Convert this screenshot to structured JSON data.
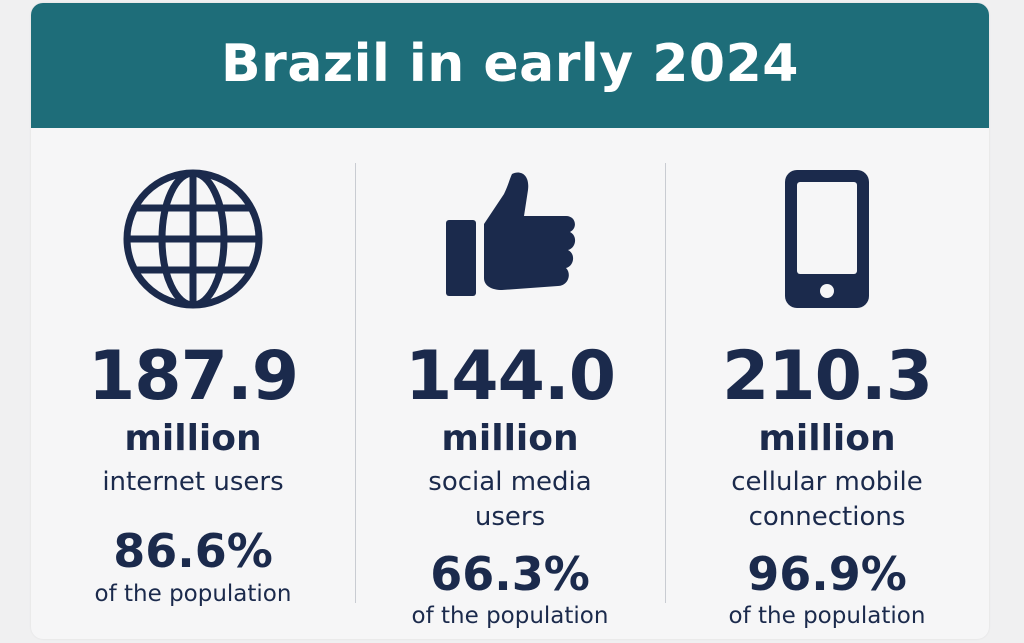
{
  "title": "Brazil in early 2024",
  "colors": {
    "header_bg": "#1e6d79",
    "text": "#1b2a4c",
    "card_bg": "#f6f6f7"
  },
  "stats": [
    {
      "icon": "globe-icon",
      "value": "187.9",
      "unit": "million",
      "label": "internet users",
      "percent": "86.6%",
      "percent_label": "of the population"
    },
    {
      "icon": "thumbs-up-icon",
      "value": "144.0",
      "unit": "million",
      "label": "social media users",
      "percent": "66.3%",
      "percent_label": "of the population"
    },
    {
      "icon": "mobile-phone-icon",
      "value": "210.3",
      "unit": "million",
      "label": "cellular mobile connections",
      "percent": "96.9%",
      "percent_label": "of the population"
    }
  ]
}
